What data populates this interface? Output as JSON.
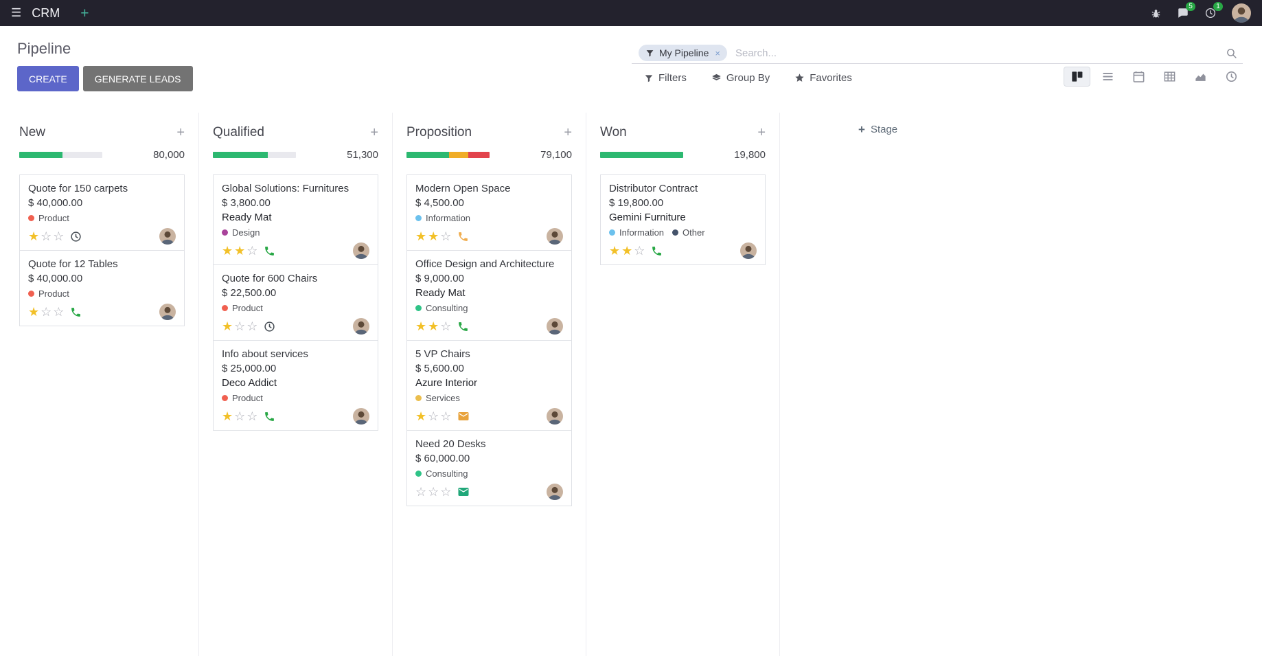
{
  "topbar": {
    "app_name": "CRM",
    "messages_badge": "5",
    "activities_badge": "1"
  },
  "control_panel": {
    "title": "Pipeline",
    "create_label": "CREATE",
    "generate_leads_label": "GENERATE LEADS",
    "search": {
      "facet_label": "My Pipeline",
      "remove_glyph": "×",
      "placeholder": "Search..."
    },
    "filters_label": "Filters",
    "group_by_label": "Group By",
    "favorites_label": "Favorites"
  },
  "icons": {
    "apps_menu": "hamburger",
    "quick_add": "plus",
    "debug": "bug",
    "messages": "chat-bubble",
    "activities": "clock",
    "filter": "funnel",
    "group_by": "layers",
    "favorites": "star",
    "search": "magnifier",
    "views": [
      "kanban",
      "list",
      "calendar",
      "pivot",
      "graph",
      "activity"
    ]
  },
  "colors": {
    "primary": "#5c66c9",
    "success": "#2cb870",
    "warning": "#f0ad27",
    "danger": "#e2434c",
    "star_filled": "#f2c028"
  },
  "board": {
    "add_stage_label": "Stage",
    "columns": [
      {
        "name": "New",
        "total": "80,000",
        "progress": [
          {
            "status": "success",
            "color": "#2cb870",
            "pct": 52
          }
        ],
        "cards": [
          {
            "title": "Quote for 150 carpets",
            "amount": "$ 40,000.00",
            "partner": "",
            "tags": [
              {
                "label": "Product",
                "color": "#f06050"
              }
            ],
            "stars": 1,
            "activity": {
              "type": "clock",
              "color": "#495057"
            }
          },
          {
            "title": "Quote for 12 Tables",
            "amount": "$ 40,000.00",
            "partner": "",
            "tags": [
              {
                "label": "Product",
                "color": "#f06050"
              }
            ],
            "stars": 1,
            "activity": {
              "type": "phone",
              "color": "#28a745"
            }
          }
        ]
      },
      {
        "name": "Qualified",
        "total": "51,300",
        "progress": [
          {
            "status": "success",
            "color": "#2cb870",
            "pct": 66
          }
        ],
        "cards": [
          {
            "title": "Global Solutions: Furnitures",
            "amount": "$ 3,800.00",
            "partner": "Ready Mat",
            "tags": [
              {
                "label": "Design",
                "color": "#a9439b"
              }
            ],
            "stars": 2,
            "activity": {
              "type": "phone",
              "color": "#28a745"
            }
          },
          {
            "title": "Quote for 600 Chairs",
            "amount": "$ 22,500.00",
            "partner": "",
            "tags": [
              {
                "label": "Product",
                "color": "#f06050"
              }
            ],
            "stars": 1,
            "activity": {
              "type": "clock",
              "color": "#495057"
            }
          },
          {
            "title": "Info about services",
            "amount": "$ 25,000.00",
            "partner": "Deco Addict",
            "tags": [
              {
                "label": "Product",
                "color": "#f06050"
              }
            ],
            "stars": 1,
            "activity": {
              "type": "phone",
              "color": "#28a745"
            }
          }
        ]
      },
      {
        "name": "Proposition",
        "total": "79,100",
        "progress": [
          {
            "status": "success",
            "color": "#2cb870",
            "pct": 51
          },
          {
            "status": "warning",
            "color": "#f0ad27",
            "pct": 23
          },
          {
            "status": "danger",
            "color": "#e2434c",
            "pct": 26
          }
        ],
        "cards": [
          {
            "title": "Modern Open Space",
            "amount": "$ 4,500.00",
            "partner": "",
            "tags": [
              {
                "label": "Information",
                "color": "#6cc1ed"
              }
            ],
            "stars": 2,
            "activity": {
              "type": "phone",
              "color": "#f0ad4e"
            }
          },
          {
            "title": "Office Design and Architecture",
            "amount": "$ 9,000.00",
            "partner": "Ready Mat",
            "tags": [
              {
                "label": "Consulting",
                "color": "#2fc387"
              }
            ],
            "stars": 2,
            "activity": {
              "type": "phone",
              "color": "#28a745"
            }
          },
          {
            "title": "5 VP Chairs",
            "amount": "$ 5,600.00",
            "partner": "Azure Interior",
            "tags": [
              {
                "label": "Services",
                "color": "#ebbe4d"
              }
            ],
            "stars": 1,
            "activity": {
              "type": "envelope",
              "color": "#e8a33d"
            }
          },
          {
            "title": "Need 20 Desks",
            "amount": "$ 60,000.00",
            "partner": "",
            "tags": [
              {
                "label": "Consulting",
                "color": "#2fc387"
              }
            ],
            "stars": 0,
            "activity": {
              "type": "envelope",
              "color": "#20a779"
            }
          }
        ]
      },
      {
        "name": "Won",
        "total": "19,800",
        "progress": [
          {
            "status": "success",
            "color": "#2cb870",
            "pct": 100
          }
        ],
        "cards": [
          {
            "title": "Distributor Contract",
            "amount": "$ 19,800.00",
            "partner": "Gemini Furniture",
            "tags": [
              {
                "label": "Information",
                "color": "#6cc1ed"
              },
              {
                "label": "Other",
                "color": "#45536b"
              }
            ],
            "stars": 2,
            "activity": {
              "type": "phone",
              "color": "#28a745"
            }
          }
        ]
      }
    ]
  }
}
